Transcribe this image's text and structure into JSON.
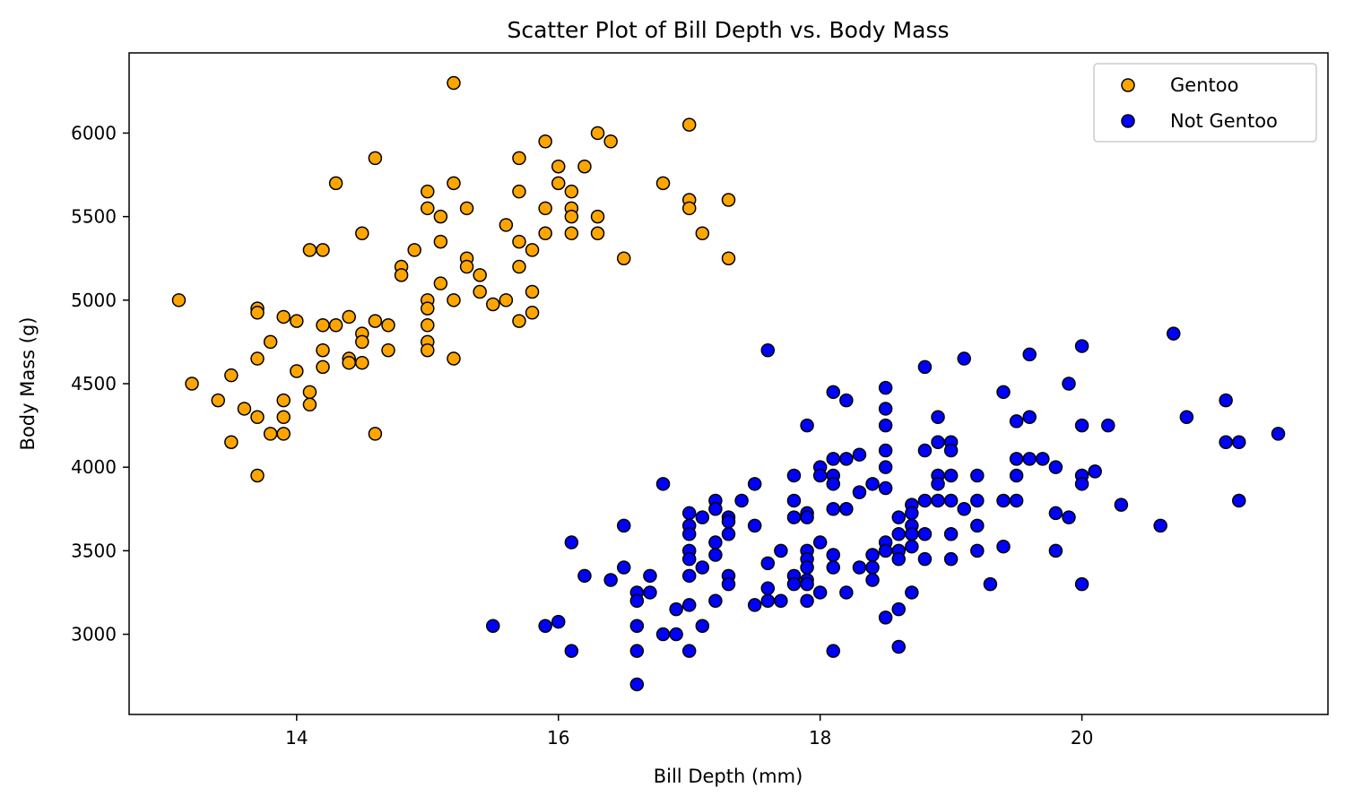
{
  "chart_data": {
    "type": "scatter",
    "title": "Scatter Plot of Bill Depth vs. Body Mass",
    "xlabel": "Bill Depth (mm)",
    "ylabel": "Body Mass (g)",
    "xlim": [
      12.72,
      21.88
    ],
    "ylim": [
      2520,
      6480
    ],
    "xticks": [
      14,
      16,
      18,
      20
    ],
    "yticks": [
      3000,
      3500,
      4000,
      4500,
      5000,
      5500,
      6000
    ],
    "grid": false,
    "legend_position": "top-right",
    "series": [
      {
        "name": "Gentoo",
        "color": "#FFA500",
        "edge_color": "#000000",
        "points": [
          [
            13.1,
            5000
          ],
          [
            13.2,
            4500
          ],
          [
            13.4,
            4400
          ],
          [
            13.5,
            4550
          ],
          [
            13.5,
            4150
          ],
          [
            13.6,
            4350
          ],
          [
            13.7,
            4950
          ],
          [
            13.7,
            4925
          ],
          [
            13.7,
            4650
          ],
          [
            13.7,
            4300
          ],
          [
            13.7,
            3950
          ],
          [
            13.8,
            4750
          ],
          [
            13.8,
            4200
          ],
          [
            13.9,
            4900
          ],
          [
            13.9,
            4400
          ],
          [
            13.9,
            4300
          ],
          [
            13.9,
            4200
          ],
          [
            14.0,
            4875
          ],
          [
            14.0,
            4575
          ],
          [
            14.1,
            5300
          ],
          [
            14.1,
            4450
          ],
          [
            14.1,
            4375
          ],
          [
            14.2,
            5300
          ],
          [
            14.2,
            4850
          ],
          [
            14.2,
            4700
          ],
          [
            14.2,
            4600
          ],
          [
            14.3,
            5700
          ],
          [
            14.3,
            4850
          ],
          [
            14.4,
            4900
          ],
          [
            14.4,
            4650
          ],
          [
            14.4,
            4625
          ],
          [
            14.5,
            5400
          ],
          [
            14.5,
            4800
          ],
          [
            14.5,
            4750
          ],
          [
            14.5,
            4625
          ],
          [
            14.6,
            5850
          ],
          [
            14.6,
            4875
          ],
          [
            14.6,
            4200
          ],
          [
            14.7,
            4850
          ],
          [
            14.7,
            4700
          ],
          [
            14.8,
            5200
          ],
          [
            14.8,
            5150
          ],
          [
            14.9,
            5300
          ],
          [
            15.0,
            5650
          ],
          [
            15.0,
            5550
          ],
          [
            15.0,
            5000
          ],
          [
            15.0,
            4950
          ],
          [
            15.0,
            4850
          ],
          [
            15.0,
            4750
          ],
          [
            15.0,
            4700
          ],
          [
            15.1,
            5500
          ],
          [
            15.1,
            5350
          ],
          [
            15.1,
            5100
          ],
          [
            15.2,
            6300
          ],
          [
            15.2,
            5700
          ],
          [
            15.2,
            5000
          ],
          [
            15.2,
            4650
          ],
          [
            15.3,
            5550
          ],
          [
            15.3,
            5250
          ],
          [
            15.3,
            5200
          ],
          [
            15.4,
            5150
          ],
          [
            15.4,
            5050
          ],
          [
            15.5,
            4975
          ],
          [
            15.6,
            5450
          ],
          [
            15.6,
            5000
          ],
          [
            15.7,
            5850
          ],
          [
            15.7,
            5650
          ],
          [
            15.7,
            5350
          ],
          [
            15.7,
            5200
          ],
          [
            15.7,
            4875
          ],
          [
            15.8,
            5300
          ],
          [
            15.8,
            5050
          ],
          [
            15.8,
            4925
          ],
          [
            15.9,
            5950
          ],
          [
            15.9,
            5550
          ],
          [
            15.9,
            5400
          ],
          [
            16.0,
            5800
          ],
          [
            16.0,
            5700
          ],
          [
            16.1,
            5650
          ],
          [
            16.1,
            5550
          ],
          [
            16.1,
            5500
          ],
          [
            16.1,
            5400
          ],
          [
            16.2,
            5800
          ],
          [
            16.3,
            6000
          ],
          [
            16.3,
            5500
          ],
          [
            16.3,
            5400
          ],
          [
            16.4,
            5950
          ],
          [
            16.5,
            5250
          ],
          [
            16.8,
            5700
          ],
          [
            17.0,
            6050
          ],
          [
            17.0,
            5600
          ],
          [
            17.0,
            5550
          ],
          [
            17.1,
            5400
          ],
          [
            17.3,
            5600
          ],
          [
            17.3,
            5250
          ]
        ]
      },
      {
        "name": "Not Gentoo",
        "color": "#0000FF",
        "edge_color": "#000000",
        "points": [
          [
            15.5,
            3050
          ],
          [
            15.9,
            3050
          ],
          [
            16.0,
            3075
          ],
          [
            16.1,
            3550
          ],
          [
            16.1,
            2900
          ],
          [
            16.2,
            3350
          ],
          [
            16.4,
            3325
          ],
          [
            16.5,
            3650
          ],
          [
            16.5,
            3400
          ],
          [
            16.6,
            3250
          ],
          [
            16.6,
            3200
          ],
          [
            16.6,
            3050
          ],
          [
            16.6,
            2900
          ],
          [
            16.6,
            2700
          ],
          [
            16.7,
            3350
          ],
          [
            16.7,
            3250
          ],
          [
            16.8,
            3900
          ],
          [
            16.8,
            3000
          ],
          [
            16.9,
            3150
          ],
          [
            16.9,
            3000
          ],
          [
            17.0,
            3725
          ],
          [
            17.0,
            3650
          ],
          [
            17.0,
            3600
          ],
          [
            17.0,
            3500
          ],
          [
            17.0,
            3450
          ],
          [
            17.0,
            3350
          ],
          [
            17.0,
            3175
          ],
          [
            17.0,
            2900
          ],
          [
            17.1,
            3700
          ],
          [
            17.1,
            3400
          ],
          [
            17.1,
            3050
          ],
          [
            17.2,
            3800
          ],
          [
            17.2,
            3750
          ],
          [
            17.2,
            3550
          ],
          [
            17.2,
            3475
          ],
          [
            17.2,
            3200
          ],
          [
            17.3,
            3700
          ],
          [
            17.3,
            3675
          ],
          [
            17.3,
            3600
          ],
          [
            17.3,
            3350
          ],
          [
            17.3,
            3300
          ],
          [
            17.4,
            3800
          ],
          [
            17.5,
            3900
          ],
          [
            17.5,
            3650
          ],
          [
            17.5,
            3175
          ],
          [
            17.6,
            4700
          ],
          [
            17.6,
            3425
          ],
          [
            17.6,
            3275
          ],
          [
            17.6,
            3200
          ],
          [
            17.7,
            3500
          ],
          [
            17.7,
            3200
          ],
          [
            17.8,
            3950
          ],
          [
            17.8,
            3800
          ],
          [
            17.8,
            3700
          ],
          [
            17.8,
            3350
          ],
          [
            17.8,
            3300
          ],
          [
            17.9,
            4250
          ],
          [
            17.9,
            3725
          ],
          [
            17.9,
            3700
          ],
          [
            17.9,
            3500
          ],
          [
            17.9,
            3450
          ],
          [
            17.9,
            3400
          ],
          [
            17.9,
            3325
          ],
          [
            17.9,
            3300
          ],
          [
            17.9,
            3200
          ],
          [
            18.0,
            4000
          ],
          [
            18.0,
            3950
          ],
          [
            18.0,
            3550
          ],
          [
            18.0,
            3250
          ],
          [
            18.1,
            4450
          ],
          [
            18.1,
            4050
          ],
          [
            18.1,
            3950
          ],
          [
            18.1,
            3900
          ],
          [
            18.1,
            3750
          ],
          [
            18.1,
            3475
          ],
          [
            18.1,
            3400
          ],
          [
            18.1,
            2900
          ],
          [
            18.2,
            4400
          ],
          [
            18.2,
            4050
          ],
          [
            18.2,
            3750
          ],
          [
            18.2,
            3250
          ],
          [
            18.3,
            4075
          ],
          [
            18.3,
            3850
          ],
          [
            18.3,
            3400
          ],
          [
            18.4,
            3900
          ],
          [
            18.4,
            3475
          ],
          [
            18.4,
            3400
          ],
          [
            18.4,
            3325
          ],
          [
            18.5,
            4475
          ],
          [
            18.5,
            4350
          ],
          [
            18.5,
            4250
          ],
          [
            18.5,
            4100
          ],
          [
            18.5,
            4000
          ],
          [
            18.5,
            3875
          ],
          [
            18.5,
            3550
          ],
          [
            18.5,
            3500
          ],
          [
            18.5,
            3100
          ],
          [
            18.6,
            3700
          ],
          [
            18.6,
            3600
          ],
          [
            18.6,
            3500
          ],
          [
            18.6,
            3450
          ],
          [
            18.6,
            3150
          ],
          [
            18.6,
            2925
          ],
          [
            18.7,
            3775
          ],
          [
            18.7,
            3725
          ],
          [
            18.7,
            3650
          ],
          [
            18.7,
            3600
          ],
          [
            18.7,
            3525
          ],
          [
            18.7,
            3250
          ],
          [
            18.8,
            4600
          ],
          [
            18.8,
            4100
          ],
          [
            18.8,
            3800
          ],
          [
            18.8,
            3600
          ],
          [
            18.8,
            3450
          ],
          [
            18.9,
            4300
          ],
          [
            18.9,
            4150
          ],
          [
            18.9,
            3950
          ],
          [
            18.9,
            3900
          ],
          [
            18.9,
            3800
          ],
          [
            19.0,
            4150
          ],
          [
            19.0,
            4100
          ],
          [
            19.0,
            3950
          ],
          [
            19.0,
            3800
          ],
          [
            19.0,
            3600
          ],
          [
            19.0,
            3450
          ],
          [
            19.1,
            4650
          ],
          [
            19.1,
            3750
          ],
          [
            19.2,
            3950
          ],
          [
            19.2,
            3800
          ],
          [
            19.2,
            3650
          ],
          [
            19.2,
            3500
          ],
          [
            19.3,
            3300
          ],
          [
            19.4,
            4450
          ],
          [
            19.4,
            3800
          ],
          [
            19.4,
            3525
          ],
          [
            19.5,
            4275
          ],
          [
            19.5,
            4050
          ],
          [
            19.5,
            3950
          ],
          [
            19.5,
            3800
          ],
          [
            19.6,
            4675
          ],
          [
            19.6,
            4300
          ],
          [
            19.6,
            4050
          ],
          [
            19.7,
            4050
          ],
          [
            19.8,
            4000
          ],
          [
            19.8,
            3725
          ],
          [
            19.8,
            3500
          ],
          [
            19.9,
            4500
          ],
          [
            19.9,
            3700
          ],
          [
            20.0,
            4725
          ],
          [
            20.0,
            4250
          ],
          [
            20.0,
            3950
          ],
          [
            20.0,
            3900
          ],
          [
            20.0,
            3300
          ],
          [
            20.1,
            3975
          ],
          [
            20.2,
            4250
          ],
          [
            20.3,
            3775
          ],
          [
            20.6,
            3650
          ],
          [
            20.7,
            4800
          ],
          [
            20.8,
            4300
          ],
          [
            21.1,
            4400
          ],
          [
            21.1,
            4150
          ],
          [
            21.2,
            4150
          ],
          [
            21.2,
            3800
          ],
          [
            21.5,
            4200
          ]
        ]
      }
    ]
  }
}
